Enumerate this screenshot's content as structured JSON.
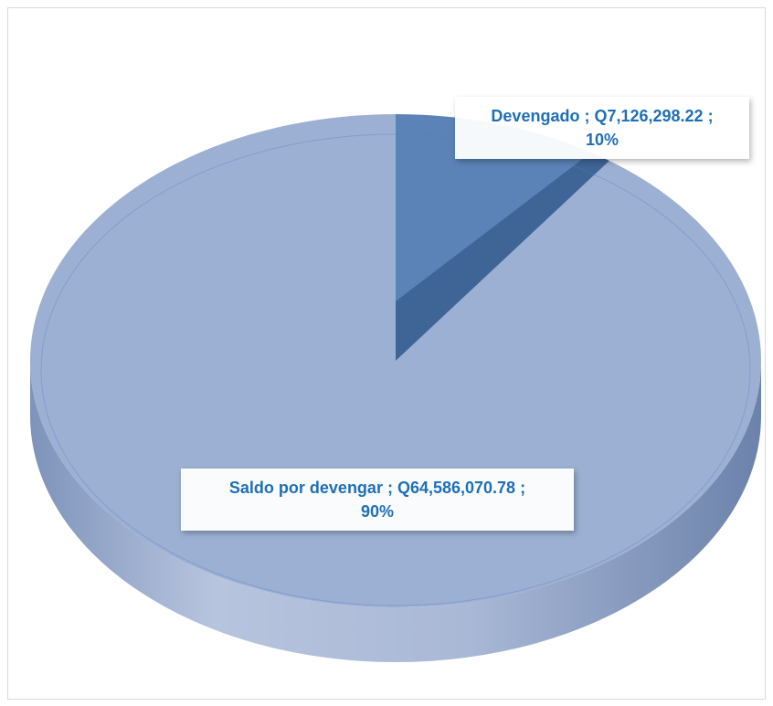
{
  "chart_data": {
    "type": "pie",
    "style": "3d",
    "currency": "Q",
    "slices": [
      {
        "name": "Devengado",
        "value": 7126298.22,
        "value_label": "Q7,126,298.22",
        "percent": 10,
        "percent_label": "10%",
        "color": "#5b83b7"
      },
      {
        "name": "Saldo por devengar",
        "value": 64586070.78,
        "value_label": "Q64,586,070.78",
        "percent": 90,
        "percent_label": "90%",
        "color": "#9cb0d3"
      }
    ],
    "separator": " ; ",
    "label_color": "#1f6fb5",
    "side_colors": {
      "light": "#b9c6e0",
      "dark": "#6f85ad"
    },
    "edge_color": "#5a7cc4"
  }
}
